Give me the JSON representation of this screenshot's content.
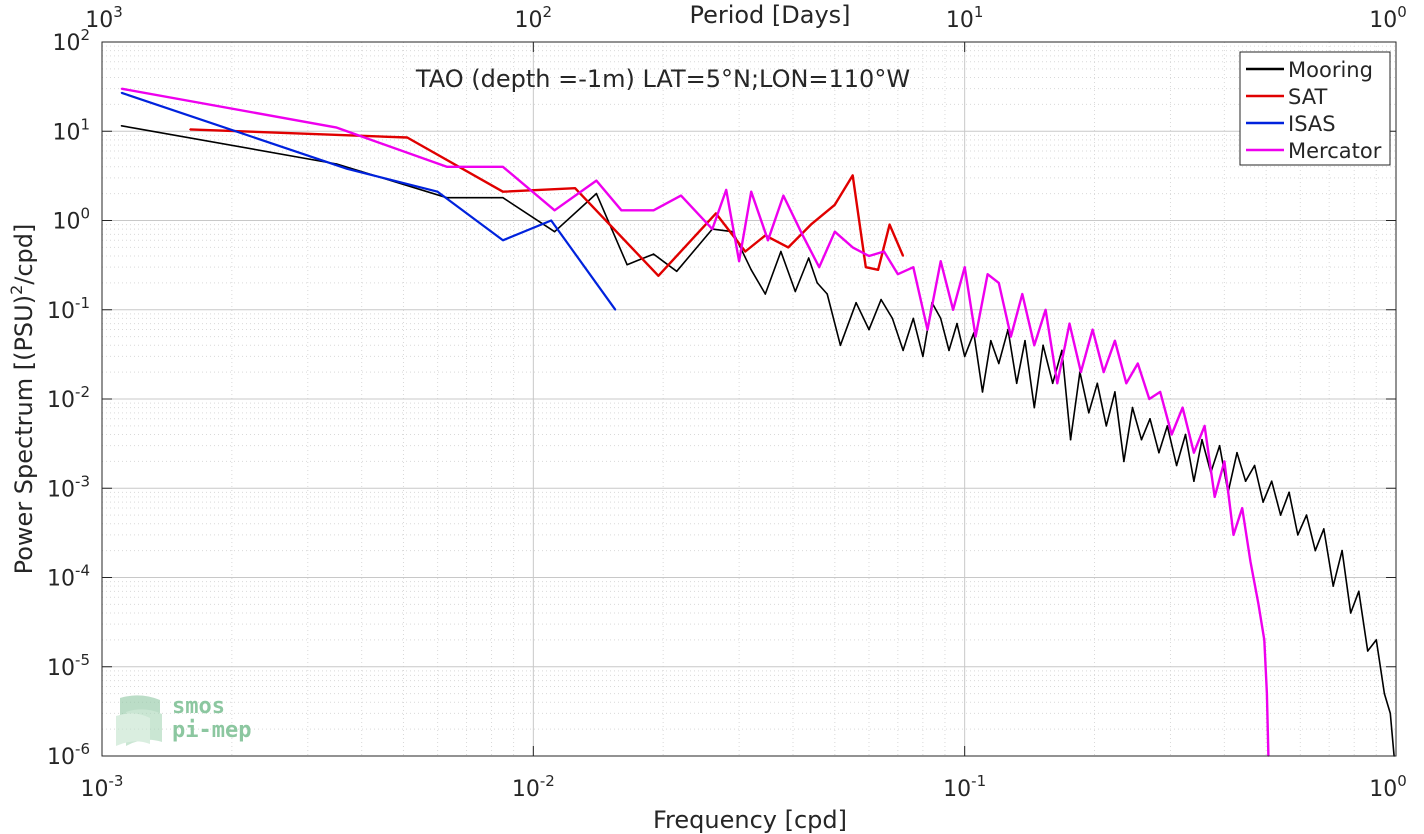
{
  "chart_data": {
    "type": "line",
    "title": "TAO (depth =-1m) LAT=5°N;LON=110°W",
    "xlabel": "Frequency [cpd]",
    "ylabel_main": "Power Spectrum [(PSU)",
    "ylabel_sup": "2",
    "ylabel_tail": "/cpd]",
    "top_xlabel": "Period [Days]",
    "x_scale": "log",
    "y_scale": "log",
    "xlim": [
      0.001,
      1
    ],
    "ylim": [
      1e-06,
      100
    ],
    "grid": true,
    "legend_position": "top-right",
    "x_ticks": [
      {
        "value": 0.001,
        "base": "10",
        "exp": "-3"
      },
      {
        "value": 0.01,
        "base": "10",
        "exp": "-2"
      },
      {
        "value": 0.1,
        "base": "10",
        "exp": "-1"
      },
      {
        "value": 1,
        "base": "10",
        "exp": "0"
      }
    ],
    "y_ticks": [
      {
        "value": 100,
        "base": "10",
        "exp": "2"
      },
      {
        "value": 10,
        "base": "10",
        "exp": "1"
      },
      {
        "value": 1,
        "base": "10",
        "exp": "0"
      },
      {
        "value": 0.1,
        "base": "10",
        "exp": "-1"
      },
      {
        "value": 0.01,
        "base": "10",
        "exp": "-2"
      },
      {
        "value": 0.001,
        "base": "10",
        "exp": "-3"
      },
      {
        "value": 0.0001,
        "base": "10",
        "exp": "-4"
      },
      {
        "value": 1e-05,
        "base": "10",
        "exp": "-5"
      },
      {
        "value": 1e-06,
        "base": "10",
        "exp": "-6"
      }
    ],
    "top_ticks": [
      {
        "period": 1000,
        "base": "10",
        "exp": "3"
      },
      {
        "period": 100,
        "base": "10",
        "exp": "2"
      },
      {
        "period": 10,
        "base": "10",
        "exp": "1"
      },
      {
        "period": 1,
        "base": "10",
        "exp": "0"
      }
    ],
    "series": [
      {
        "name": "Mooring",
        "color": "#000000",
        "x": [
          0.00111,
          0.0035,
          0.0063,
          0.0085,
          0.0112,
          0.014,
          0.0165,
          0.019,
          0.0215,
          0.026,
          0.029,
          0.032,
          0.0345,
          0.0375,
          0.0405,
          0.0435,
          0.0455,
          0.048,
          0.0515,
          0.056,
          0.06,
          0.064,
          0.068,
          0.072,
          0.076,
          0.08,
          0.084,
          0.088,
          0.092,
          0.096,
          0.1,
          0.105,
          0.11,
          0.115,
          0.12,
          0.126,
          0.132,
          0.138,
          0.145,
          0.152,
          0.16,
          0.168,
          0.176,
          0.185,
          0.194,
          0.203,
          0.213,
          0.223,
          0.234,
          0.245,
          0.257,
          0.269,
          0.282,
          0.295,
          0.31,
          0.325,
          0.34,
          0.355,
          0.372,
          0.39,
          0.408,
          0.428,
          0.448,
          0.47,
          0.492,
          0.515,
          0.54,
          0.565,
          0.592,
          0.62,
          0.65,
          0.68,
          0.715,
          0.75,
          0.785,
          0.82,
          0.86,
          0.9,
          0.94,
          0.97,
          0.99
        ],
        "y": [
          11.5,
          4.3,
          1.8,
          1.8,
          0.75,
          2.0,
          0.32,
          0.42,
          0.27,
          0.8,
          0.75,
          0.28,
          0.15,
          0.45,
          0.16,
          0.38,
          0.2,
          0.15,
          0.04,
          0.12,
          0.06,
          0.13,
          0.08,
          0.035,
          0.08,
          0.03,
          0.12,
          0.08,
          0.035,
          0.07,
          0.03,
          0.055,
          0.012,
          0.045,
          0.025,
          0.06,
          0.015,
          0.045,
          0.008,
          0.04,
          0.015,
          0.035,
          0.0035,
          0.02,
          0.007,
          0.015,
          0.005,
          0.012,
          0.002,
          0.008,
          0.0035,
          0.006,
          0.0025,
          0.005,
          0.0018,
          0.004,
          0.0012,
          0.0035,
          0.0015,
          0.003,
          0.0009,
          0.0025,
          0.0012,
          0.0018,
          0.0007,
          0.0012,
          0.0005,
          0.0009,
          0.0003,
          0.0005,
          0.0002,
          0.00035,
          8e-05,
          0.0002,
          4e-05,
          7e-05,
          1.5e-05,
          2e-05,
          5e-06,
          3e-06,
          1e-06
        ]
      },
      {
        "name": "SAT",
        "color": "#e00000",
        "x": [
          0.0016,
          0.0051,
          0.0085,
          0.0125,
          0.0195,
          0.0265,
          0.031,
          0.0345,
          0.039,
          0.044,
          0.05,
          0.055,
          0.059,
          0.063,
          0.067,
          0.072
        ],
        "y": [
          10.5,
          8.5,
          2.1,
          2.3,
          0.24,
          1.2,
          0.45,
          0.68,
          0.5,
          0.9,
          1.5,
          3.2,
          0.3,
          0.28,
          0.9,
          0.4
        ]
      },
      {
        "name": "ISAS",
        "color": "#0022dd",
        "x": [
          0.00111,
          0.0037,
          0.006,
          0.0085,
          0.011,
          0.0155
        ],
        "y": [
          27,
          3.8,
          2.1,
          0.6,
          1.0,
          0.1
        ]
      },
      {
        "name": "Mercator",
        "color": "#ee00ee",
        "x": [
          0.00111,
          0.0035,
          0.0063,
          0.0085,
          0.0112,
          0.014,
          0.016,
          0.019,
          0.022,
          0.026,
          0.028,
          0.03,
          0.032,
          0.035,
          0.038,
          0.042,
          0.046,
          0.05,
          0.055,
          0.06,
          0.065,
          0.07,
          0.076,
          0.082,
          0.088,
          0.094,
          0.1,
          0.106,
          0.113,
          0.12,
          0.128,
          0.136,
          0.145,
          0.154,
          0.164,
          0.175,
          0.186,
          0.198,
          0.21,
          0.223,
          0.237,
          0.252,
          0.268,
          0.284,
          0.302,
          0.32,
          0.34,
          0.36,
          0.38,
          0.4,
          0.42,
          0.44,
          0.46,
          0.48,
          0.495,
          0.502,
          0.506
        ],
        "y": [
          30,
          11,
          4.0,
          4.0,
          1.3,
          2.8,
          1.3,
          1.3,
          1.9,
          0.8,
          2.2,
          0.35,
          2.1,
          0.6,
          1.9,
          0.7,
          0.3,
          0.75,
          0.5,
          0.4,
          0.45,
          0.25,
          0.3,
          0.06,
          0.35,
          0.1,
          0.3,
          0.05,
          0.25,
          0.2,
          0.05,
          0.15,
          0.04,
          0.1,
          0.015,
          0.07,
          0.02,
          0.06,
          0.02,
          0.045,
          0.015,
          0.025,
          0.01,
          0.012,
          0.004,
          0.008,
          0.0025,
          0.005,
          0.0008,
          0.002,
          0.0003,
          0.0006,
          0.00015,
          5e-05,
          2e-05,
          5e-06,
          1e-06
        ]
      }
    ]
  },
  "logo": {
    "line1": "smos",
    "line2": "pi-mep"
  }
}
